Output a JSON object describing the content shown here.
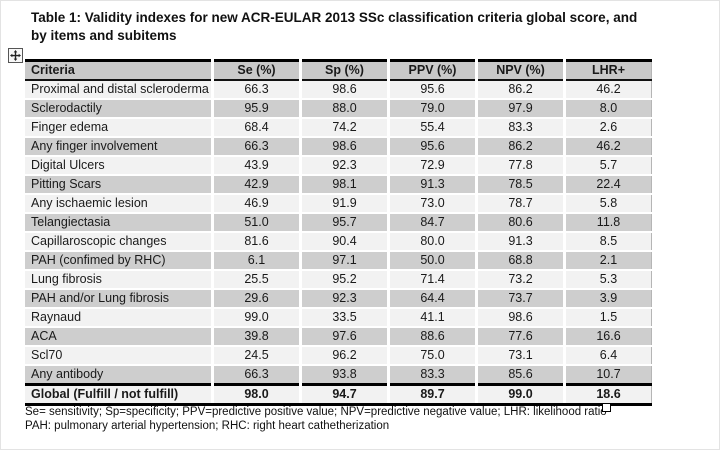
{
  "page": {
    "title_line1": "Table 1: Validity indexes for new ACR-EULAR 2013 SSc classification criteria global score, and",
    "title_line2": "by items and subitems"
  },
  "table": {
    "columns": [
      "Criteria",
      "Se (%)",
      "Sp (%)",
      "PPV (%)",
      "NPV (%)",
      "LHR+"
    ],
    "rows": [
      {
        "criteria": "Proximal and distal scleroderma",
        "values": [
          "66.3",
          "98.6",
          "95.6",
          "86.2",
          "46.2"
        ]
      },
      {
        "criteria": "Sclerodactily",
        "values": [
          "95.9",
          "88.0",
          "79.0",
          "97.9",
          "8.0"
        ]
      },
      {
        "criteria": "Finger edema",
        "values": [
          "68.4",
          "74.2",
          "55.4",
          "83.3",
          "2.6"
        ]
      },
      {
        "criteria": "Any finger involvement",
        "values": [
          "66.3",
          "98.6",
          "95.6",
          "86.2",
          "46.2"
        ]
      },
      {
        "criteria": "Digital Ulcers",
        "values": [
          "43.9",
          "92.3",
          "72.9",
          "77.8",
          "5.7"
        ]
      },
      {
        "criteria": "Pitting Scars",
        "values": [
          "42.9",
          "98.1",
          "91.3",
          "78.5",
          "22.4"
        ]
      },
      {
        "criteria": "Any ischaemic lesion",
        "values": [
          "46.9",
          "91.9",
          "73.0",
          "78.7",
          "5.8"
        ]
      },
      {
        "criteria": "Telangiectasia",
        "values": [
          "51.0",
          "95.7",
          "84.7",
          "80.6",
          "11.8"
        ]
      },
      {
        "criteria": "Capillaroscopic changes",
        "values": [
          "81.6",
          "90.4",
          "80.0",
          "91.3",
          "8.5"
        ]
      },
      {
        "criteria": "PAH (confimed by RHC)",
        "values": [
          "6.1",
          "97.1",
          "50.0",
          "68.8",
          "2.1"
        ]
      },
      {
        "criteria": "Lung fibrosis",
        "values": [
          "25.5",
          "95.2",
          "71.4",
          "73.2",
          "5.3"
        ]
      },
      {
        "criteria": "PAH and/or Lung fibrosis",
        "values": [
          "29.6",
          "92.3",
          "64.4",
          "73.7",
          "3.9"
        ]
      },
      {
        "criteria": "Raynaud",
        "values": [
          "99.0",
          "33.5",
          "41.1",
          "98.6",
          "1.5"
        ]
      },
      {
        "criteria": "ACA",
        "values": [
          "39.8",
          "97.6",
          "88.6",
          "77.6",
          "16.6"
        ]
      },
      {
        "criteria": "Scl70",
        "values": [
          "24.5",
          "96.2",
          "75.0",
          "73.1",
          "6.4"
        ]
      },
      {
        "criteria": "Any antibody",
        "values": [
          "66.3",
          "93.8",
          "83.3",
          "85.6",
          "10.7"
        ]
      },
      {
        "criteria": "Global (Fulfill / not fulfill)",
        "values": [
          "98.0",
          "94.7",
          "89.7",
          "99.0",
          "18.6"
        ],
        "emphasis": true
      }
    ],
    "colors": {
      "header_bg": "#c9c9c9",
      "band_gray": "#cecece",
      "band_light": "#f2f2f2",
      "border": "#000000"
    }
  },
  "footnotes": {
    "line1": "Se= sensitivity; Sp=specificity; PPV=predictive positive value; NPV=predictive negative value; LHR: likelihood ratio",
    "line2": "PAH: pulmonary arterial hypertension; RHC: right heart cathetherization"
  },
  "icons": {
    "move_handle": "table-move-handle",
    "resize_handle": "table-resize-handle"
  }
}
